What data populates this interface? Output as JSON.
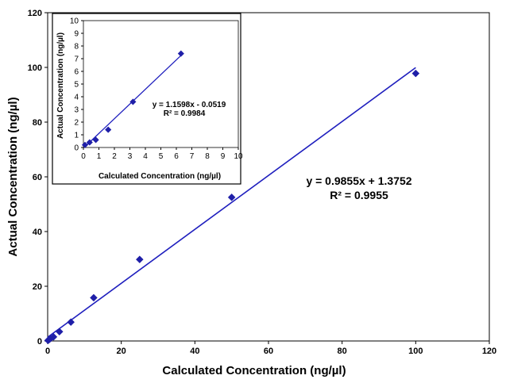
{
  "chart_data": [
    {
      "id": "main",
      "type": "scatter",
      "xlabel": "Calculated Concentration (ng/µl)",
      "ylabel": "Actual Concentration (ng/µl)",
      "xlim": [
        0,
        120
      ],
      "ylim": [
        0,
        120
      ],
      "xticks": [
        0,
        20,
        40,
        60,
        80,
        100,
        120
      ],
      "yticks": [
        0,
        20,
        40,
        60,
        80,
        100,
        120
      ],
      "marker_color": "#1F1FA8",
      "line_color": "#1F1FBE",
      "points": [
        {
          "x": 0.1,
          "y": 0.2
        },
        {
          "x": 0.4,
          "y": 0.5
        },
        {
          "x": 0.8,
          "y": 0.9
        },
        {
          "x": 1.6,
          "y": 1.5
        },
        {
          "x": 3.2,
          "y": 3.4
        },
        {
          "x": 6.3,
          "y": 6.9
        },
        {
          "x": 12.5,
          "y": 15.8
        },
        {
          "x": 25,
          "y": 29.8
        },
        {
          "x": 50,
          "y": 52.5
        },
        {
          "x": 100,
          "y": 97.8
        }
      ],
      "trendline": {
        "slope": 0.9855,
        "intercept": 1.3752,
        "x_range": [
          0,
          100
        ]
      },
      "equation": "y = 0.9855x + 1.3752",
      "r_squared": "R² = 0.9955"
    },
    {
      "id": "inset",
      "type": "scatter",
      "xlabel": "Calculated Concentration (ng/µl)",
      "ylabel": "Actual Concentration (ng/µl)",
      "xlim": [
        0,
        10
      ],
      "ylim": [
        0,
        10
      ],
      "xticks": [
        0,
        1,
        2,
        3,
        4,
        5,
        6,
        7,
        8,
        9,
        10
      ],
      "yticks": [
        0,
        1,
        2,
        3,
        4,
        5,
        6,
        7,
        8,
        9,
        10
      ],
      "marker_color": "#1F1FA8",
      "line_color": "#1F1FBE",
      "points": [
        {
          "x": 0.1,
          "y": 0.2
        },
        {
          "x": 0.4,
          "y": 0.4
        },
        {
          "x": 0.8,
          "y": 0.6
        },
        {
          "x": 1.6,
          "y": 1.4
        },
        {
          "x": 3.2,
          "y": 3.6
        },
        {
          "x": 6.3,
          "y": 7.4
        }
      ],
      "trendline": {
        "slope": 1.1598,
        "intercept": -0.0519,
        "x_range": [
          0.1,
          6.3
        ]
      },
      "equation": "y = 1.1598x - 0.0519",
      "r_squared": "R² = 0.9984"
    }
  ]
}
